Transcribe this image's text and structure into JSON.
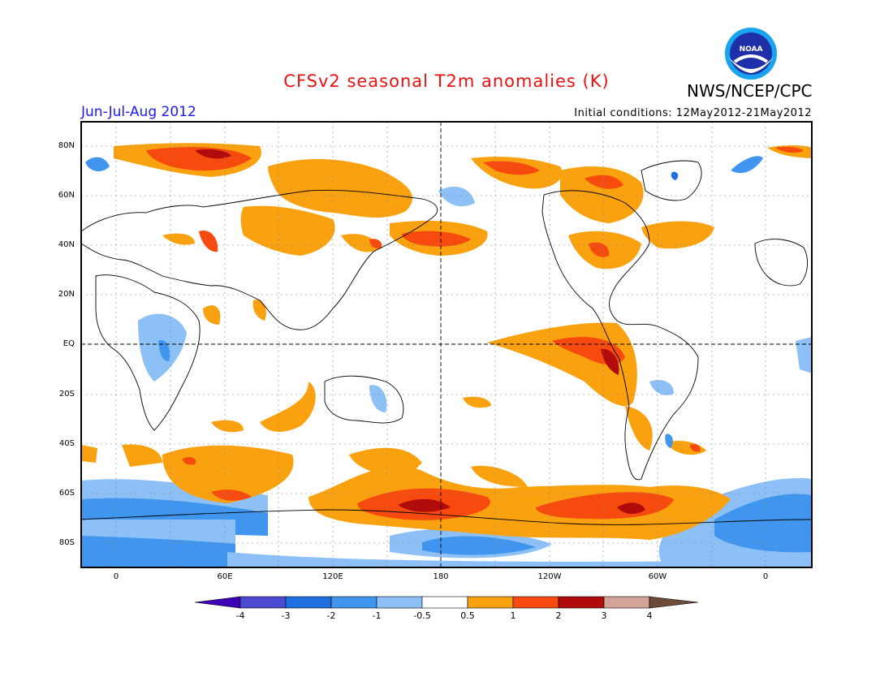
{
  "header": {
    "title": "CFSv2 seasonal T2m anomalies (K)",
    "period": "Jun-Jul-Aug 2012",
    "initial_conditions": "Initial conditions: 12May2012-21May2012",
    "org": "NWS/NCEP/CPC",
    "logo_text": "NOAA"
  },
  "axes": {
    "y_labels": [
      "80N",
      "60N",
      "40N",
      "20N",
      "EQ",
      "20S",
      "40S",
      "60S",
      "80S"
    ],
    "x_labels": [
      "0",
      "60E",
      "120E",
      "180",
      "120W",
      "60W",
      "0"
    ]
  },
  "colorbar": {
    "labels": [
      "-4",
      "-3",
      "-2",
      "-1",
      "-0.5",
      "0.5",
      "1",
      "2",
      "3",
      "4"
    ],
    "colors": [
      "#3e00b4",
      "#4b48d1",
      "#1e6fe0",
      "#4096ee",
      "#8cc0f7",
      "#ffffff",
      "#f9a10e",
      "#f74a0e",
      "#b00c0c",
      "#d3a397",
      "#6e4a3a"
    ]
  }
}
